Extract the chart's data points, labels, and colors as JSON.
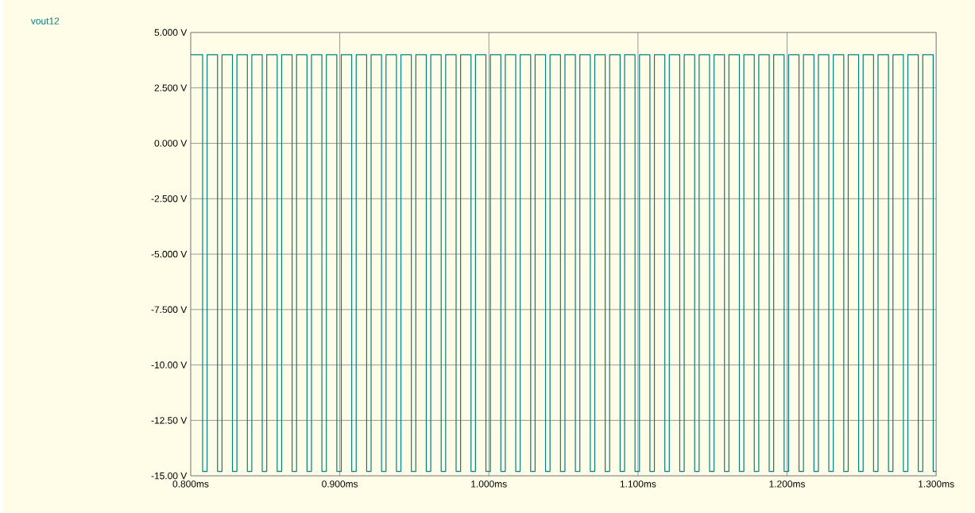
{
  "chart_data": {
    "type": "step",
    "series": [
      {
        "name": "vout12",
        "color": "#008080",
        "x": [
          0.8,
          0.808,
          0.811,
          0.818,
          0.821,
          0.828,
          0.831,
          0.838,
          0.841,
          0.848,
          0.851,
          0.858,
          0.861,
          0.868,
          0.871,
          0.878,
          0.881,
          0.888,
          0.891,
          0.898,
          0.901,
          0.908,
          0.911,
          0.918,
          0.921,
          0.928,
          0.931,
          0.938,
          0.941,
          0.948,
          0.951,
          0.958,
          0.961,
          0.968,
          0.971,
          0.978,
          0.981,
          0.988,
          0.991,
          0.998,
          1.001,
          1.008,
          1.011,
          1.018,
          1.021,
          1.028,
          1.031,
          1.038,
          1.041,
          1.048,
          1.051,
          1.058,
          1.061,
          1.068,
          1.071,
          1.078,
          1.081,
          1.088,
          1.091,
          1.098,
          1.101,
          1.108,
          1.111,
          1.118,
          1.121,
          1.128,
          1.131,
          1.138,
          1.141,
          1.148,
          1.151,
          1.158,
          1.161,
          1.168,
          1.171,
          1.178,
          1.181,
          1.188,
          1.191,
          1.198,
          1.201,
          1.208,
          1.211,
          1.218,
          1.221,
          1.228,
          1.231,
          1.238,
          1.241,
          1.248,
          1.251,
          1.258,
          1.261,
          1.268,
          1.271,
          1.278,
          1.281,
          1.288,
          1.291,
          1.298,
          1.3
        ],
        "values": [
          4,
          -14.8,
          4,
          -14.8,
          4,
          -14.8,
          4,
          -14.8,
          4,
          -14.8,
          4,
          -14.8,
          4,
          -14.8,
          4,
          -14.8,
          4,
          -14.8,
          4,
          -14.8,
          4,
          -14.8,
          4,
          -14.8,
          4,
          -14.8,
          4,
          -14.8,
          4,
          -14.8,
          4,
          -14.8,
          4,
          -14.8,
          4,
          -14.8,
          4,
          -14.8,
          4,
          -14.8,
          4,
          -14.8,
          4,
          -14.8,
          4,
          -14.8,
          4,
          -14.8,
          4,
          -14.8,
          4,
          -14.8,
          4,
          -14.8,
          4,
          -14.8,
          4,
          -14.8,
          4,
          -14.8,
          4,
          -14.8,
          4,
          -14.8,
          4,
          -14.8,
          4,
          -14.8,
          4,
          -14.8,
          4,
          -14.8,
          4,
          -14.8,
          4,
          -14.8,
          4,
          -14.8,
          4,
          -14.8,
          4,
          -14.8,
          4,
          -14.8,
          4,
          -14.8,
          4,
          -14.8,
          4,
          -14.8,
          4,
          -14.8,
          4,
          -14.8,
          4,
          -14.8,
          4,
          -14.8,
          4,
          -14.8,
          -14.8
        ]
      }
    ],
    "xlim": [
      0.8,
      1.3
    ],
    "ylim": [
      -15,
      5
    ],
    "xticks": [
      {
        "value": 0.8,
        "label": "0.800ms"
      },
      {
        "value": 0.9,
        "label": "0.900ms"
      },
      {
        "value": 1.0,
        "label": "1.000ms"
      },
      {
        "value": 1.1,
        "label": "1.100ms"
      },
      {
        "value": 1.2,
        "label": "1.200ms"
      },
      {
        "value": 1.3,
        "label": "1.300ms"
      }
    ],
    "yticks": [
      {
        "value": -15,
        "label": "-15.00 V"
      },
      {
        "value": -12.5,
        "label": "-12.50 V"
      },
      {
        "value": -10,
        "label": "-10.00 V"
      },
      {
        "value": -7.5,
        "label": "-7.500 V"
      },
      {
        "value": -5,
        "label": "-5.000 V"
      },
      {
        "value": -2.5,
        "label": "-2.500 V"
      },
      {
        "value": 0,
        "label": "0.000 V"
      },
      {
        "value": 2.5,
        "label": "2.500 V"
      },
      {
        "value": 5,
        "label": "5.000 V"
      }
    ],
    "grid": true,
    "legend": "top left",
    "marker": "none",
    "line_style": "solid"
  }
}
